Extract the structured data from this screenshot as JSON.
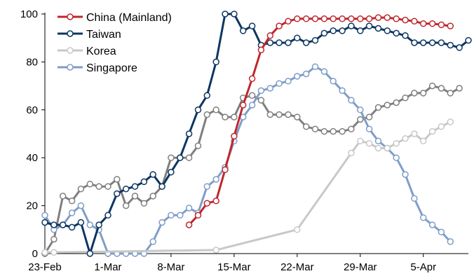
{
  "chart_data": {
    "type": "line",
    "title": "",
    "xlabel": "",
    "ylabel": "",
    "ylim": [
      0,
      100
    ],
    "yticks": [
      0,
      20,
      40,
      60,
      80,
      100
    ],
    "xlim": [
      "2020-02-23",
      "2020-04-10"
    ],
    "xticks": [
      {
        "label": "23-Feb",
        "date": "2020-02-23"
      },
      {
        "label": "1-Mar",
        "date": "2020-03-01"
      },
      {
        "label": "8-Mar",
        "date": "2020-03-08"
      },
      {
        "label": "15-Mar",
        "date": "2020-03-15"
      },
      {
        "label": "22-Mar",
        "date": "2020-03-22"
      },
      {
        "label": "29-Mar",
        "date": "2020-03-29"
      },
      {
        "label": "5-Apr",
        "date": "2020-04-05"
      }
    ],
    "grid": false,
    "legend": {
      "position": "top-left"
    },
    "marker": "hollow-circle",
    "series": [
      {
        "name": "China (Mainland)",
        "color": "#c0262d",
        "points": [
          [
            "2020-03-10",
            12
          ],
          [
            "2020-03-11",
            16
          ],
          [
            "2020-03-12",
            21
          ],
          [
            "2020-03-13",
            22
          ],
          [
            "2020-03-14",
            35
          ],
          [
            "2020-03-15",
            49
          ],
          [
            "2020-03-16",
            62
          ],
          [
            "2020-03-17",
            73
          ],
          [
            "2020-03-18",
            85
          ],
          [
            "2020-03-19",
            91
          ],
          [
            "2020-03-20",
            95
          ],
          [
            "2020-03-21",
            97
          ],
          [
            "2020-03-22",
            98
          ],
          [
            "2020-03-23",
            98
          ],
          [
            "2020-03-24",
            98
          ],
          [
            "2020-03-25",
            98
          ],
          [
            "2020-03-26",
            98
          ],
          [
            "2020-03-27",
            98
          ],
          [
            "2020-03-28",
            98
          ],
          [
            "2020-03-29",
            98
          ],
          [
            "2020-03-30",
            98
          ],
          [
            "2020-03-31",
            98.5
          ],
          [
            "2020-04-01",
            98.5
          ],
          [
            "2020-04-02",
            98
          ],
          [
            "2020-04-03",
            97.5
          ],
          [
            "2020-04-04",
            97
          ],
          [
            "2020-04-05",
            96
          ],
          [
            "2020-04-06",
            96
          ],
          [
            "2020-04-07",
            95.5
          ],
          [
            "2020-04-08",
            95
          ]
        ]
      },
      {
        "name": "Taiwan",
        "color": "#0d3561",
        "points": [
          [
            "2020-02-23",
            13
          ],
          [
            "2020-02-24",
            12
          ],
          [
            "2020-02-25",
            12
          ],
          [
            "2020-02-26",
            11
          ],
          [
            "2020-02-27",
            13
          ],
          [
            "2020-02-28",
            0
          ],
          [
            "2020-02-29",
            12
          ],
          [
            "2020-03-01",
            16
          ],
          [
            "2020-03-02",
            25
          ],
          [
            "2020-03-03",
            27
          ],
          [
            "2020-03-04",
            28
          ],
          [
            "2020-03-05",
            30
          ],
          [
            "2020-03-06",
            33
          ],
          [
            "2020-03-07",
            28
          ],
          [
            "2020-03-08",
            34
          ],
          [
            "2020-03-09",
            40
          ],
          [
            "2020-03-10",
            50
          ],
          [
            "2020-03-11",
            60
          ],
          [
            "2020-03-12",
            66
          ],
          [
            "2020-03-13",
            80
          ],
          [
            "2020-03-14",
            100
          ],
          [
            "2020-03-15",
            100
          ],
          [
            "2020-03-16",
            93
          ],
          [
            "2020-03-17",
            95
          ],
          [
            "2020-03-18",
            87
          ],
          [
            "2020-03-19",
            88
          ],
          [
            "2020-03-20",
            88
          ],
          [
            "2020-03-21",
            88
          ],
          [
            "2020-03-22",
            90
          ],
          [
            "2020-03-23",
            88
          ],
          [
            "2020-03-24",
            89
          ],
          [
            "2020-03-25",
            92
          ],
          [
            "2020-03-26",
            93
          ],
          [
            "2020-03-27",
            93
          ],
          [
            "2020-03-28",
            95
          ],
          [
            "2020-03-29",
            93
          ],
          [
            "2020-03-30",
            95
          ],
          [
            "2020-03-31",
            94
          ],
          [
            "2020-04-01",
            93
          ],
          [
            "2020-04-02",
            92
          ],
          [
            "2020-04-03",
            91
          ],
          [
            "2020-04-04",
            88
          ],
          [
            "2020-04-05",
            88
          ],
          [
            "2020-04-06",
            88
          ],
          [
            "2020-04-07",
            88
          ],
          [
            "2020-04-08",
            87
          ],
          [
            "2020-04-09",
            86
          ],
          [
            "2020-04-10",
            89
          ]
        ]
      },
      {
        "name": "Korea",
        "color": "#c8c8c8",
        "points": [
          [
            "2020-02-23",
            0.5
          ],
          [
            "2020-02-24",
            0.5
          ],
          [
            "2020-03-13",
            1.5
          ],
          [
            "2020-03-22",
            10
          ],
          [
            "2020-03-28",
            42
          ],
          [
            "2020-03-29",
            47
          ],
          [
            "2020-03-30",
            46
          ],
          [
            "2020-03-31",
            44
          ],
          [
            "2020-04-01",
            44
          ],
          [
            "2020-04-02",
            46
          ],
          [
            "2020-04-03",
            48
          ],
          [
            "2020-04-04",
            50
          ],
          [
            "2020-04-05",
            47
          ],
          [
            "2020-04-06",
            51
          ],
          [
            "2020-04-07",
            53
          ],
          [
            "2020-04-08",
            55
          ]
        ]
      },
      {
        "name": "Singapore",
        "color": "#7f9dc8",
        "points": [
          [
            "2020-02-23",
            16
          ],
          [
            "2020-02-24",
            10
          ],
          [
            "2020-02-25",
            12
          ],
          [
            "2020-02-26",
            17
          ],
          [
            "2020-02-27",
            20
          ],
          [
            "2020-02-28",
            12
          ],
          [
            "2020-02-29",
            10
          ],
          [
            "2020-03-01",
            0
          ],
          [
            "2020-03-02",
            0
          ],
          [
            "2020-03-03",
            0
          ],
          [
            "2020-03-04",
            0
          ],
          [
            "2020-03-05",
            0
          ],
          [
            "2020-03-06",
            5
          ],
          [
            "2020-03-07",
            13
          ],
          [
            "2020-03-08",
            16
          ],
          [
            "2020-03-09",
            16
          ],
          [
            "2020-03-10",
            19
          ],
          [
            "2020-03-11",
            17
          ],
          [
            "2020-03-12",
            28
          ],
          [
            "2020-03-13",
            31
          ],
          [
            "2020-03-14",
            36
          ],
          [
            "2020-03-15",
            47
          ],
          [
            "2020-03-16",
            57
          ],
          [
            "2020-03-17",
            62
          ],
          [
            "2020-03-18",
            68
          ],
          [
            "2020-03-19",
            69
          ],
          [
            "2020-03-20",
            71
          ],
          [
            "2020-03-21",
            72
          ],
          [
            "2020-03-22",
            74
          ],
          [
            "2020-03-23",
            75
          ],
          [
            "2020-03-24",
            78
          ],
          [
            "2020-03-25",
            76
          ],
          [
            "2020-03-26",
            72
          ],
          [
            "2020-03-27",
            68
          ],
          [
            "2020-03-28",
            64
          ],
          [
            "2020-03-29",
            60
          ],
          [
            "2020-03-30",
            52
          ],
          [
            "2020-03-31",
            47
          ],
          [
            "2020-04-01",
            44
          ],
          [
            "2020-04-02",
            40
          ],
          [
            "2020-04-03",
            33
          ],
          [
            "2020-04-04",
            23
          ],
          [
            "2020-04-05",
            15
          ],
          [
            "2020-04-06",
            12
          ],
          [
            "2020-04-07",
            9
          ],
          [
            "2020-04-08",
            5
          ]
        ]
      },
      {
        "name": "",
        "color": "#7f7f7f",
        "points": [
          [
            "2020-02-23",
            0
          ],
          [
            "2020-02-24",
            6
          ],
          [
            "2020-02-25",
            24
          ],
          [
            "2020-02-26",
            22
          ],
          [
            "2020-02-27",
            27
          ],
          [
            "2020-02-28",
            29
          ],
          [
            "2020-02-29",
            28
          ],
          [
            "2020-03-01",
            28
          ],
          [
            "2020-03-02",
            31
          ],
          [
            "2020-03-03",
            20
          ],
          [
            "2020-03-04",
            24
          ],
          [
            "2020-03-05",
            21
          ],
          [
            "2020-03-06",
            24
          ],
          [
            "2020-03-07",
            28
          ],
          [
            "2020-03-08",
            40
          ],
          [
            "2020-03-09",
            40
          ],
          [
            "2020-03-10",
            40
          ],
          [
            "2020-03-11",
            45
          ],
          [
            "2020-03-12",
            58
          ],
          [
            "2020-03-13",
            60
          ],
          [
            "2020-03-14",
            57
          ],
          [
            "2020-03-15",
            57
          ],
          [
            "2020-03-16",
            65
          ],
          [
            "2020-03-17",
            66
          ],
          [
            "2020-03-18",
            64
          ],
          [
            "2020-03-19",
            58
          ],
          [
            "2020-03-20",
            58
          ],
          [
            "2020-03-21",
            58
          ],
          [
            "2020-03-22",
            57
          ],
          [
            "2020-03-23",
            53
          ],
          [
            "2020-03-24",
            52
          ],
          [
            "2020-03-25",
            51
          ],
          [
            "2020-03-26",
            51
          ],
          [
            "2020-03-27",
            51
          ],
          [
            "2020-03-28",
            52
          ],
          [
            "2020-03-29",
            56
          ],
          [
            "2020-03-30",
            57
          ],
          [
            "2020-03-31",
            61
          ],
          [
            "2020-04-01",
            62
          ],
          [
            "2020-04-02",
            63
          ],
          [
            "2020-04-03",
            65
          ],
          [
            "2020-04-04",
            67
          ],
          [
            "2020-04-05",
            67
          ],
          [
            "2020-04-06",
            70
          ],
          [
            "2020-04-07",
            69
          ],
          [
            "2020-04-08",
            67
          ],
          [
            "2020-04-09",
            69
          ]
        ]
      }
    ]
  }
}
